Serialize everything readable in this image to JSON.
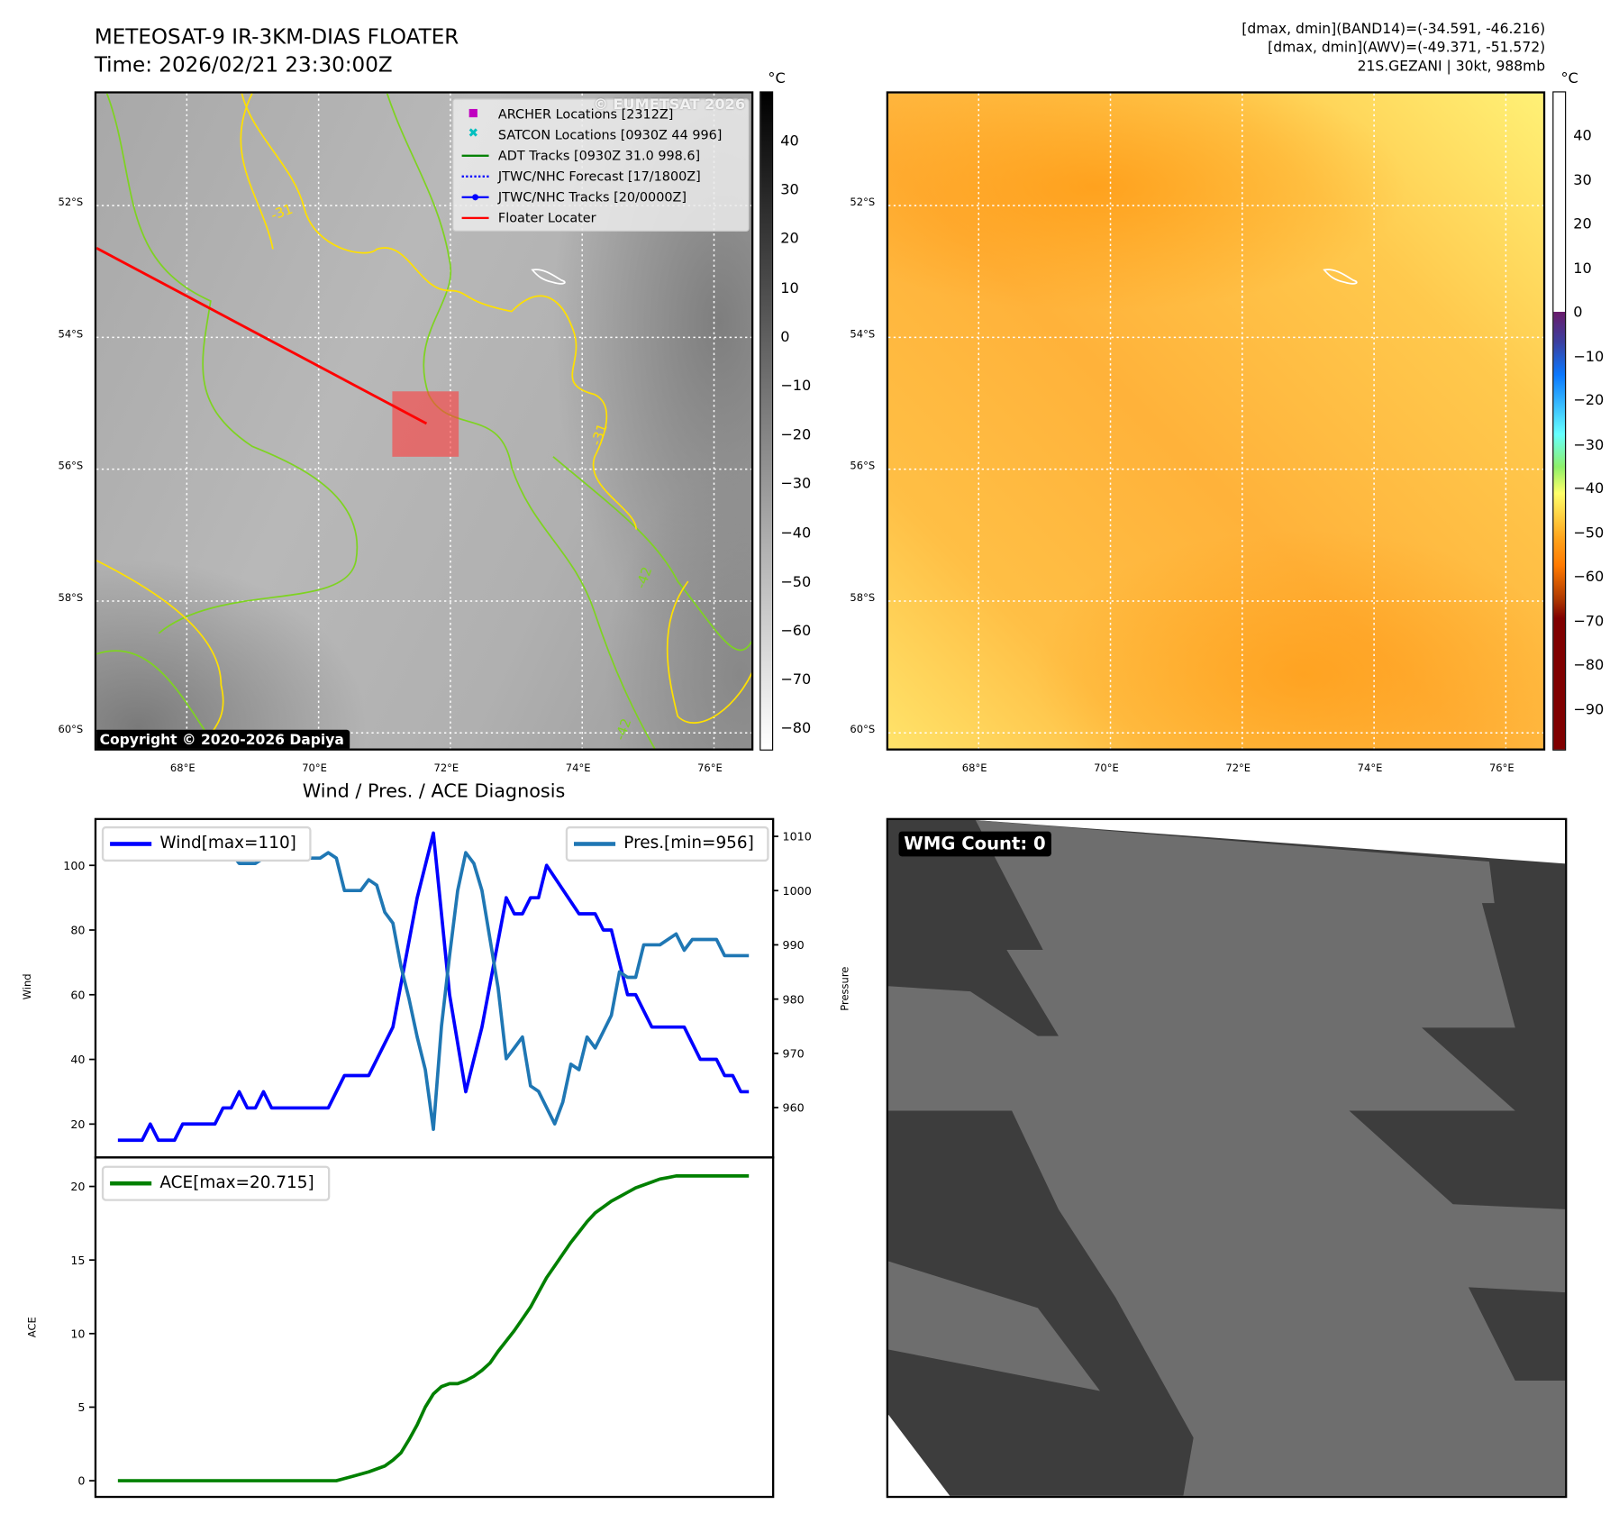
{
  "header": {
    "title": "METEOSAT-9 IR-3KM-DIAS FLOATER",
    "time": "Time: 2026/02/21 23:30:00Z",
    "band14_range": "[dmax, dmin](BAND14)=(-34.591, -46.216)",
    "awv_range": "[dmax, dmin](AWV)=(-49.371, -51.572)",
    "storm_info": "21S.GEZANI | 30kt, 988mb"
  },
  "maps": {
    "unit": "°C",
    "lat_ticks": [
      {
        "v": 52,
        "label": "52°S"
      },
      {
        "v": 54,
        "label": "54°S"
      },
      {
        "v": 56,
        "label": "56°S"
      },
      {
        "v": 58,
        "label": "58°S"
      },
      {
        "v": 60,
        "label": "60°S"
      }
    ],
    "lon_ticks": [
      {
        "v": 68,
        "label": "68°E"
      },
      {
        "v": 70,
        "label": "70°E"
      },
      {
        "v": 72,
        "label": "72°E"
      },
      {
        "v": 74,
        "label": "74°E"
      },
      {
        "v": 76,
        "label": "76°E"
      }
    ],
    "ir_colorbar_ticks": [
      "40",
      "30",
      "20",
      "10",
      "0",
      "−10",
      "−20",
      "−30",
      "−40",
      "−50",
      "−60",
      "−70",
      "−80"
    ],
    "awv_colorbar_ticks": [
      "40",
      "30",
      "20",
      "10",
      "0",
      "−10",
      "−20",
      "−30",
      "−40",
      "−50",
      "−60",
      "−70",
      "−80",
      "−90"
    ],
    "watermark": "© EUMETSAT 2026",
    "copyright": "Copyright © 2020-2026 Dapiya",
    "contour_labels": [
      "-31",
      "-31",
      "-42",
      "-42"
    ],
    "legend": [
      {
        "label": "ARCHER Locations [2312Z]",
        "color": "#c000c0",
        "marker": "square"
      },
      {
        "label": "SATCON Locations [0930Z 44 996]",
        "color": "#00bfbf",
        "marker": "x"
      },
      {
        "label": "ADT Tracks [0930Z 31.0 998.6]",
        "color": "#008000",
        "marker": "line"
      },
      {
        "label": "JTWC/NHC Forecast [17/1800Z]",
        "color": "#0000ff",
        "marker": "dotted"
      },
      {
        "label": "JTWC/NHC Tracks [20/0000Z]",
        "color": "#0000ff",
        "marker": "line-dot"
      },
      {
        "label": "Floater Locater",
        "color": "#ff0000",
        "marker": "line"
      }
    ]
  },
  "chart_data": [
    {
      "type": "line",
      "title": "Wind / Pres. / ACE Diagnosis",
      "ylabel": "Wind",
      "ylabel_right": "Pressure",
      "ylim": [
        10,
        114
      ],
      "ylim_right": [
        951,
        1013
      ],
      "yticks": [
        "20",
        "40",
        "60",
        "80",
        "100"
      ],
      "yticks_right": [
        "960",
        "970",
        "980",
        "990",
        "1000",
        "1010"
      ],
      "xlim": [
        -2.9,
        81
      ],
      "series": [
        {
          "name": "Wind[max=110]",
          "color": "#0000ff",
          "legend": "top-left",
          "points": [
            [
              0,
              15
            ],
            [
              3,
              15
            ],
            [
              4,
              20
            ],
            [
              5,
              15
            ],
            [
              7,
              15
            ],
            [
              8,
              20
            ],
            [
              12,
              20
            ],
            [
              13,
              25
            ],
            [
              14,
              25
            ],
            [
              15,
              30
            ],
            [
              16,
              25
            ],
            [
              17,
              25
            ],
            [
              18,
              30
            ],
            [
              19,
              25
            ],
            [
              26,
              25
            ],
            [
              28,
              35
            ],
            [
              31,
              35
            ],
            [
              34,
              50
            ],
            [
              37,
              90
            ],
            [
              39,
              110
            ],
            [
              41,
              60
            ],
            [
              43,
              30
            ],
            [
              45,
              50
            ],
            [
              48,
              90
            ],
            [
              49,
              85
            ],
            [
              50,
              85
            ],
            [
              51,
              90
            ],
            [
              52,
              90
            ],
            [
              53,
              100
            ],
            [
              57,
              85
            ],
            [
              59,
              85
            ],
            [
              60,
              80
            ],
            [
              61,
              80
            ],
            [
              63,
              60
            ],
            [
              64,
              60
            ],
            [
              66,
              50
            ],
            [
              70,
              50
            ],
            [
              72,
              40
            ],
            [
              74,
              40
            ],
            [
              75,
              35
            ],
            [
              76,
              35
            ],
            [
              77,
              30
            ],
            [
              78,
              30
            ]
          ]
        },
        {
          "name": "Pres.[min=956]",
          "color": "#1f77b4",
          "axis": "right",
          "legend": "top-right",
          "points": [
            [
              0,
              1009
            ],
            [
              1,
              1009
            ],
            [
              2,
              1011
            ],
            [
              6,
              1011
            ],
            [
              8,
              1007
            ],
            [
              10,
              1007
            ],
            [
              11,
              1006
            ],
            [
              13,
              1006
            ],
            [
              14,
              1007
            ],
            [
              15,
              1005
            ],
            [
              17,
              1005
            ],
            [
              18,
              1006
            ],
            [
              19,
              1008
            ],
            [
              20,
              1007
            ],
            [
              21,
              1007
            ],
            [
              22,
              1006
            ],
            [
              25,
              1006
            ],
            [
              26,
              1007
            ],
            [
              27,
              1006
            ],
            [
              28,
              1000
            ],
            [
              30,
              1000
            ],
            [
              31,
              1002
            ],
            [
              32,
              1001
            ],
            [
              33,
              996
            ],
            [
              34,
              994
            ],
            [
              35,
              986
            ],
            [
              36,
              980
            ],
            [
              37,
              973
            ],
            [
              38,
              967
            ],
            [
              39,
              956
            ],
            [
              40,
              975
            ],
            [
              41,
              988
            ],
            [
              42,
              1000
            ],
            [
              43,
              1007
            ],
            [
              44,
              1005
            ],
            [
              45,
              1000
            ],
            [
              46,
              991
            ],
            [
              47,
              982
            ],
            [
              48,
              969
            ],
            [
              49,
              971
            ],
            [
              50,
              973
            ],
            [
              51,
              964
            ],
            [
              52,
              963
            ],
            [
              53,
              960
            ],
            [
              54,
              957
            ],
            [
              55,
              961
            ],
            [
              56,
              968
            ],
            [
              57,
              967
            ],
            [
              58,
              973
            ],
            [
              59,
              971
            ],
            [
              60,
              974
            ],
            [
              61,
              977
            ],
            [
              62,
              985
            ],
            [
              63,
              984
            ],
            [
              64,
              984
            ],
            [
              65,
              990
            ],
            [
              67,
              990
            ],
            [
              69,
              992
            ],
            [
              70,
              989
            ],
            [
              71,
              991
            ],
            [
              74,
              991
            ],
            [
              75,
              988
            ],
            [
              78,
              988
            ]
          ]
        }
      ]
    },
    {
      "type": "line",
      "ylabel": "ACE",
      "ylim": [
        -1.1,
        21.9
      ],
      "yticks": [
        "0",
        "5",
        "10",
        "15",
        "20"
      ],
      "xlim": [
        -2.9,
        81
      ],
      "series": [
        {
          "name": "ACE[max=20.715]",
          "color": "#008000",
          "legend": "top-left",
          "points": [
            [
              0,
              0
            ],
            [
              27,
              0
            ],
            [
              29,
              0.3
            ],
            [
              31,
              0.6
            ],
            [
              33,
              1.0
            ],
            [
              34,
              1.4
            ],
            [
              35,
              1.9
            ],
            [
              36,
              2.8
            ],
            [
              37,
              3.8
            ],
            [
              38,
              5.0
            ],
            [
              39,
              5.9
            ],
            [
              40,
              6.4
            ],
            [
              41,
              6.6
            ],
            [
              42,
              6.6
            ],
            [
              43,
              6.8
            ],
            [
              44,
              7.1
            ],
            [
              45,
              7.5
            ],
            [
              46,
              8.0
            ],
            [
              47,
              8.8
            ],
            [
              48,
              9.5
            ],
            [
              49,
              10.2
            ],
            [
              50,
              11.0
            ],
            [
              51,
              11.8
            ],
            [
              52,
              12.8
            ],
            [
              53,
              13.8
            ],
            [
              54,
              14.6
            ],
            [
              55,
              15.4
            ],
            [
              56,
              16.2
            ],
            [
              57,
              16.9
            ],
            [
              58,
              17.6
            ],
            [
              59,
              18.2
            ],
            [
              60,
              18.6
            ],
            [
              61,
              19.0
            ],
            [
              62,
              19.3
            ],
            [
              63,
              19.6
            ],
            [
              64,
              19.9
            ],
            [
              65,
              20.1
            ],
            [
              66,
              20.3
            ],
            [
              67,
              20.5
            ],
            [
              68,
              20.6
            ],
            [
              69,
              20.715
            ],
            [
              78,
              20.715
            ]
          ]
        }
      ]
    }
  ],
  "wmg": {
    "label": "WMG Count: 0"
  }
}
